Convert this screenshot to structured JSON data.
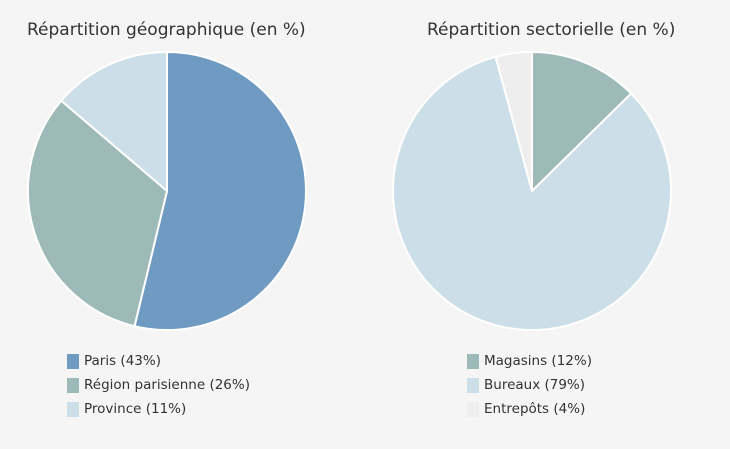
{
  "chart_data": [
    {
      "type": "pie",
      "title": "Répartition géographique (en %)",
      "slices": [
        {
          "label": "Paris (43%)",
          "value": 43,
          "color": "#6f9bc2"
        },
        {
          "label": "Région parisienne (26%)",
          "value": 26,
          "color": "#9dbab8"
        },
        {
          "label": "Province (11%)",
          "value": 11,
          "color": "#ccdee8"
        }
      ],
      "legend_position": "bottom"
    },
    {
      "type": "pie",
      "title": "Répartition sectorielle (en %)",
      "slices": [
        {
          "label": "Magasins (12%)",
          "value": 12,
          "color": "#9dbab8"
        },
        {
          "label": "Bureaux (79%)",
          "value": 79,
          "color": "#ccdee8"
        },
        {
          "label": "Entrepôts (4%)",
          "value": 4,
          "color": "#eeeeee"
        }
      ],
      "legend_position": "bottom"
    }
  ]
}
